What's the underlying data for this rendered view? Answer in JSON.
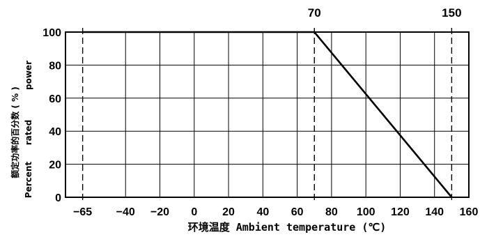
{
  "chart_data": {
    "type": "line",
    "x": [
      -65,
      70,
      150
    ],
    "series": [
      {
        "values": [
          100,
          100,
          0
        ]
      }
    ],
    "xlabel": "环境温度 Ambient temperature (℃)",
    "ylabel_cn": "额定功率的百分数 ( % )",
    "ylabel_en": [
      "Percent",
      "rated",
      "power"
    ],
    "xlim": [
      -75,
      160
    ],
    "ylim": [
      0,
      100
    ],
    "x_ticks": [
      -65,
      -40,
      -20,
      0,
      20,
      40,
      60,
      80,
      100,
      120,
      140,
      160
    ],
    "y_ticks": [
      0,
      20,
      40,
      60,
      80,
      100
    ],
    "x_tick_labels": [
      "−65",
      "−40",
      "−20",
      "0",
      "20",
      "40",
      "60",
      "80",
      "100",
      "120",
      "140",
      "160"
    ],
    "y_tick_labels": [
      "0",
      "20",
      "40",
      "60",
      "80",
      "100"
    ],
    "top_annotations": [
      {
        "x": 70,
        "label": "70"
      },
      {
        "x": 150,
        "label": "150"
      }
    ],
    "dashed_guides_x": [
      -65,
      70,
      150
    ],
    "grid": true,
    "line_color": "#000000",
    "grid_color": "#000000"
  }
}
